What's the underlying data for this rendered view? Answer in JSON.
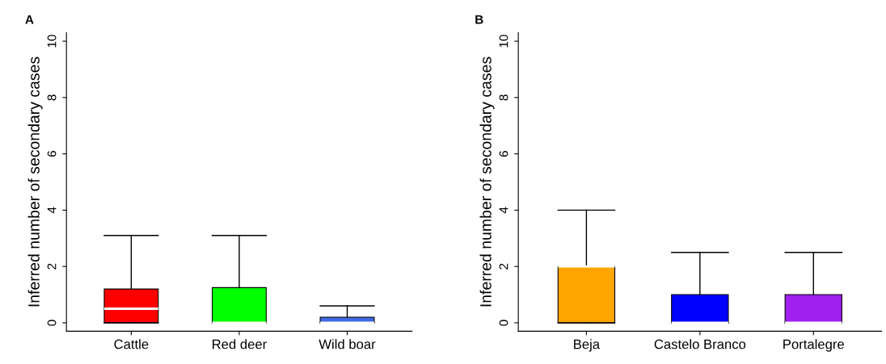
{
  "chart_data": [
    {
      "type": "box",
      "title": "A",
      "ylabel": "Inferred number of secondary cases",
      "categories": [
        "Cattle",
        "Red deer",
        "Wild boar"
      ],
      "colors": [
        "#ff0000",
        "#00ff00",
        "#4169e1"
      ],
      "ylim": [
        -0.3,
        10.3
      ],
      "yticks": [
        0,
        2,
        4,
        6,
        8,
        10
      ],
      "boxes": [
        {
          "low": 0,
          "q1": 0,
          "median": 0.5,
          "q3": 1.2,
          "high": 3.1
        },
        {
          "low": 0,
          "q1": 0,
          "median": 0,
          "q3": 1.25,
          "high": 3.1
        },
        {
          "low": 0,
          "q1": 0,
          "median": 0,
          "q3": 0.2,
          "high": 0.6
        }
      ]
    },
    {
      "type": "box",
      "title": "B",
      "ylabel": "Inferred number of secondary cases",
      "categories": [
        "Beja",
        "Castelo Branco",
        "Portalegre"
      ],
      "colors": [
        "#ffa500",
        "#0000ff",
        "#a020f0"
      ],
      "ylim": [
        -0.3,
        10.3
      ],
      "yticks": [
        0,
        2,
        4,
        6,
        8,
        10
      ],
      "boxes": [
        {
          "low": 0,
          "q1": 0,
          "median": 2,
          "q3": 2,
          "high": 4
        },
        {
          "low": 0,
          "q1": 0,
          "median": 0,
          "q3": 1,
          "high": 2.5
        },
        {
          "low": 0,
          "q1": 0,
          "median": 0,
          "q3": 1,
          "high": 2.5
        }
      ]
    }
  ]
}
